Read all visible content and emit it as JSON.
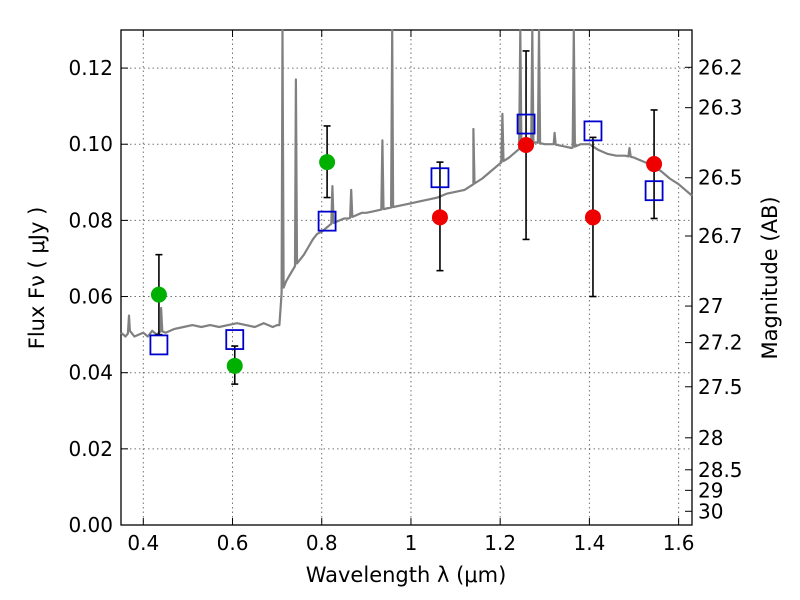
{
  "chart_data": {
    "type": "scatter",
    "xlabel": "Wavelength  λ (μm)",
    "ylabel": "Flux  Fν  ( μJy )",
    "y2label": "Magnitude (AB)",
    "xlim": [
      0.35,
      1.63
    ],
    "ylim": [
      0.0,
      0.13
    ],
    "x_ticks": [
      "0.4",
      "0.6",
      "0.8",
      "1",
      "1.2",
      "1.4",
      "1.6"
    ],
    "y_ticks": [
      "0.00",
      "0.02",
      "0.04",
      "0.06",
      "0.08",
      "0.10",
      "0.12"
    ],
    "y2_ticks": [
      {
        "label": "26.2",
        "flux": 0.1202
      },
      {
        "label": "26.3",
        "flux": 0.1096
      },
      {
        "label": "26.5",
        "flux": 0.0912
      },
      {
        "label": "26.7",
        "flux": 0.0759
      },
      {
        "label": "27",
        "flux": 0.0575
      },
      {
        "label": "27.2",
        "flux": 0.0479
      },
      {
        "label": "27.5",
        "flux": 0.0363
      },
      {
        "label": "28",
        "flux": 0.0229
      },
      {
        "label": "28.5",
        "flux": 0.0145
      },
      {
        "label": "29",
        "flux": 0.0091
      },
      {
        "label": "30",
        "flux": 0.0036
      }
    ],
    "grid": true,
    "colors": {
      "spectrum": "#808080",
      "green": "#00b000",
      "red": "#ee0000",
      "model": "#0000cc",
      "errorbar": "#000000"
    },
    "spectrum": {
      "points": [
        [
          0.35,
          0.0505
        ],
        [
          0.36,
          0.0495
        ],
        [
          0.37,
          0.051
        ],
        [
          0.38,
          0.0495
        ],
        [
          0.39,
          0.05
        ],
        [
          0.4,
          0.0505
        ],
        [
          0.41,
          0.0495
        ],
        [
          0.42,
          0.051
        ],
        [
          0.43,
          0.05
        ],
        [
          0.44,
          0.051
        ],
        [
          0.45,
          0.0505
        ],
        [
          0.47,
          0.0515
        ],
        [
          0.49,
          0.052
        ],
        [
          0.51,
          0.0525
        ],
        [
          0.53,
          0.052
        ],
        [
          0.55,
          0.0525
        ],
        [
          0.57,
          0.052
        ],
        [
          0.59,
          0.0525
        ],
        [
          0.61,
          0.053
        ],
        [
          0.63,
          0.0525
        ],
        [
          0.65,
          0.052
        ],
        [
          0.67,
          0.053
        ],
        [
          0.69,
          0.052
        ],
        [
          0.7,
          0.0525
        ],
        [
          0.705,
          0.0525
        ],
        [
          0.71,
          0.061
        ],
        [
          0.72,
          0.064
        ],
        [
          0.73,
          0.066
        ],
        [
          0.74,
          0.068
        ],
        [
          0.75,
          0.0695
        ],
        [
          0.76,
          0.071
        ],
        [
          0.77,
          0.073
        ],
        [
          0.78,
          0.075
        ],
        [
          0.79,
          0.0765
        ],
        [
          0.8,
          0.077
        ],
        [
          0.81,
          0.078
        ],
        [
          0.82,
          0.079
        ],
        [
          0.83,
          0.0795
        ],
        [
          0.84,
          0.08
        ],
        [
          0.85,
          0.0805
        ],
        [
          0.86,
          0.0805
        ],
        [
          0.87,
          0.081
        ],
        [
          0.88,
          0.0815
        ],
        [
          0.89,
          0.082
        ],
        [
          0.9,
          0.082
        ],
        [
          0.92,
          0.0825
        ],
        [
          0.94,
          0.083
        ],
        [
          0.96,
          0.0835
        ],
        [
          0.98,
          0.084
        ],
        [
          1.0,
          0.0845
        ],
        [
          1.02,
          0.085
        ],
        [
          1.04,
          0.0855
        ],
        [
          1.06,
          0.086
        ],
        [
          1.08,
          0.087
        ],
        [
          1.1,
          0.0875
        ],
        [
          1.12,
          0.088
        ],
        [
          1.14,
          0.0895
        ],
        [
          1.16,
          0.091
        ],
        [
          1.18,
          0.093
        ],
        [
          1.2,
          0.095
        ],
        [
          1.22,
          0.0965
        ],
        [
          1.24,
          0.0985
        ],
        [
          1.26,
          0.1
        ],
        [
          1.28,
          0.1005
        ],
        [
          1.3,
          0.1
        ],
        [
          1.32,
          0.1
        ],
        [
          1.34,
          0.0995
        ],
        [
          1.36,
          0.099
        ],
        [
          1.38,
          0.1
        ],
        [
          1.4,
          0.1
        ],
        [
          1.42,
          0.0985
        ],
        [
          1.44,
          0.0975
        ],
        [
          1.46,
          0.097
        ],
        [
          1.48,
          0.097
        ],
        [
          1.5,
          0.0965
        ],
        [
          1.52,
          0.0955
        ],
        [
          1.54,
          0.0945
        ],
        [
          1.56,
          0.093
        ],
        [
          1.58,
          0.091
        ],
        [
          1.6,
          0.0895
        ],
        [
          1.62,
          0.0875
        ],
        [
          1.63,
          0.0865
        ]
      ],
      "spikes": [
        {
          "x": 0.368,
          "y": 0.055
        },
        {
          "x": 0.44,
          "y": 0.057
        },
        {
          "x": 0.712,
          "y": 0.13
        },
        {
          "x": 0.742,
          "y": 0.117
        },
        {
          "x": 0.824,
          "y": 0.089
        },
        {
          "x": 0.866,
          "y": 0.088
        },
        {
          "x": 0.936,
          "y": 0.101
        },
        {
          "x": 0.958,
          "y": 0.13
        },
        {
          "x": 1.14,
          "y": 0.104
        },
        {
          "x": 1.205,
          "y": 0.108
        },
        {
          "x": 1.245,
          "y": 0.13
        },
        {
          "x": 1.272,
          "y": 0.13
        },
        {
          "x": 1.287,
          "y": 0.13
        },
        {
          "x": 1.322,
          "y": 0.103
        },
        {
          "x": 1.365,
          "y": 0.13
        },
        {
          "x": 1.49,
          "y": 0.099
        }
      ]
    },
    "series": [
      {
        "marker": "circle",
        "color": "green",
        "points": [
          {
            "x": 0.435,
            "y": 0.0605,
            "lo": 0.05,
            "hi": 0.071
          },
          {
            "x": 0.605,
            "y": 0.0418,
            "lo": 0.037,
            "hi": 0.047
          },
          {
            "x": 0.812,
            "y": 0.0953,
            "lo": 0.086,
            "hi": 0.1048
          }
        ]
      },
      {
        "marker": "circle",
        "color": "red",
        "points": [
          {
            "x": 1.065,
            "y": 0.0808,
            "lo": 0.0668,
            "hi": 0.0953
          },
          {
            "x": 1.258,
            "y": 0.0998,
            "lo": 0.075,
            "hi": 0.1245
          },
          {
            "x": 1.408,
            "y": 0.0808,
            "lo": 0.06,
            "hi": 0.1018
          },
          {
            "x": 1.545,
            "y": 0.0948,
            "lo": 0.0805,
            "hi": 0.109
          }
        ]
      },
      {
        "marker": "square",
        "color": "model",
        "points": [
          {
            "x": 0.435,
            "y": 0.0473
          },
          {
            "x": 0.605,
            "y": 0.0487
          },
          {
            "x": 0.812,
            "y": 0.0798
          },
          {
            "x": 1.065,
            "y": 0.0912
          },
          {
            "x": 1.258,
            "y": 0.1053
          },
          {
            "x": 1.408,
            "y": 0.1035
          },
          {
            "x": 1.545,
            "y": 0.0878
          }
        ]
      }
    ]
  }
}
